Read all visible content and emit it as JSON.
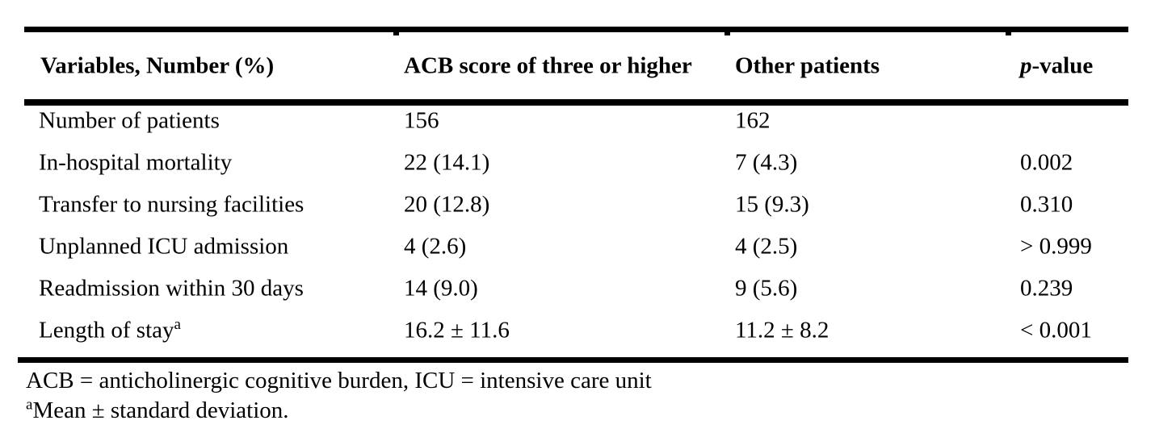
{
  "colors": {
    "background": "#ffffff",
    "text": "#000000",
    "rule": "#000000"
  },
  "table": {
    "header": {
      "col1": "Variables, Number (%)",
      "col2": "ACB score of three or higher",
      "col3": "Other patients",
      "col4_italic": "p",
      "col4_rest": "-value"
    },
    "rows": [
      {
        "variable": "Number of patients",
        "sup": "",
        "acb": "156",
        "other": "162",
        "p": ""
      },
      {
        "variable": "In-hospital mortality",
        "sup": "",
        "acb": "22 (14.1)",
        "other": "7 (4.3)",
        "p": "0.002"
      },
      {
        "variable": "Transfer to nursing facilities",
        "sup": "",
        "acb": "20 (12.8)",
        "other": "15 (9.3)",
        "p": "0.310"
      },
      {
        "variable": "Unplanned ICU admission",
        "sup": "",
        "acb": "4 (2.6)",
        "other": "4 (2.5)",
        "p": "> 0.999"
      },
      {
        "variable": "Readmission within 30 days",
        "sup": "",
        "acb": "14 (9.0)",
        "other": "9 (5.6)",
        "p": "0.239"
      },
      {
        "variable": "Length of stay",
        "sup": "a",
        "acb": "16.2 ± 11.6",
        "other": "11.2 ± 8.2",
        "p": "< 0.001"
      }
    ],
    "footnotes": [
      {
        "sup": "",
        "text": "ACB = anticholinergic cognitive burden, ICU = intensive care unit"
      },
      {
        "sup": "a",
        "text": "Mean ± standard deviation."
      }
    ]
  }
}
